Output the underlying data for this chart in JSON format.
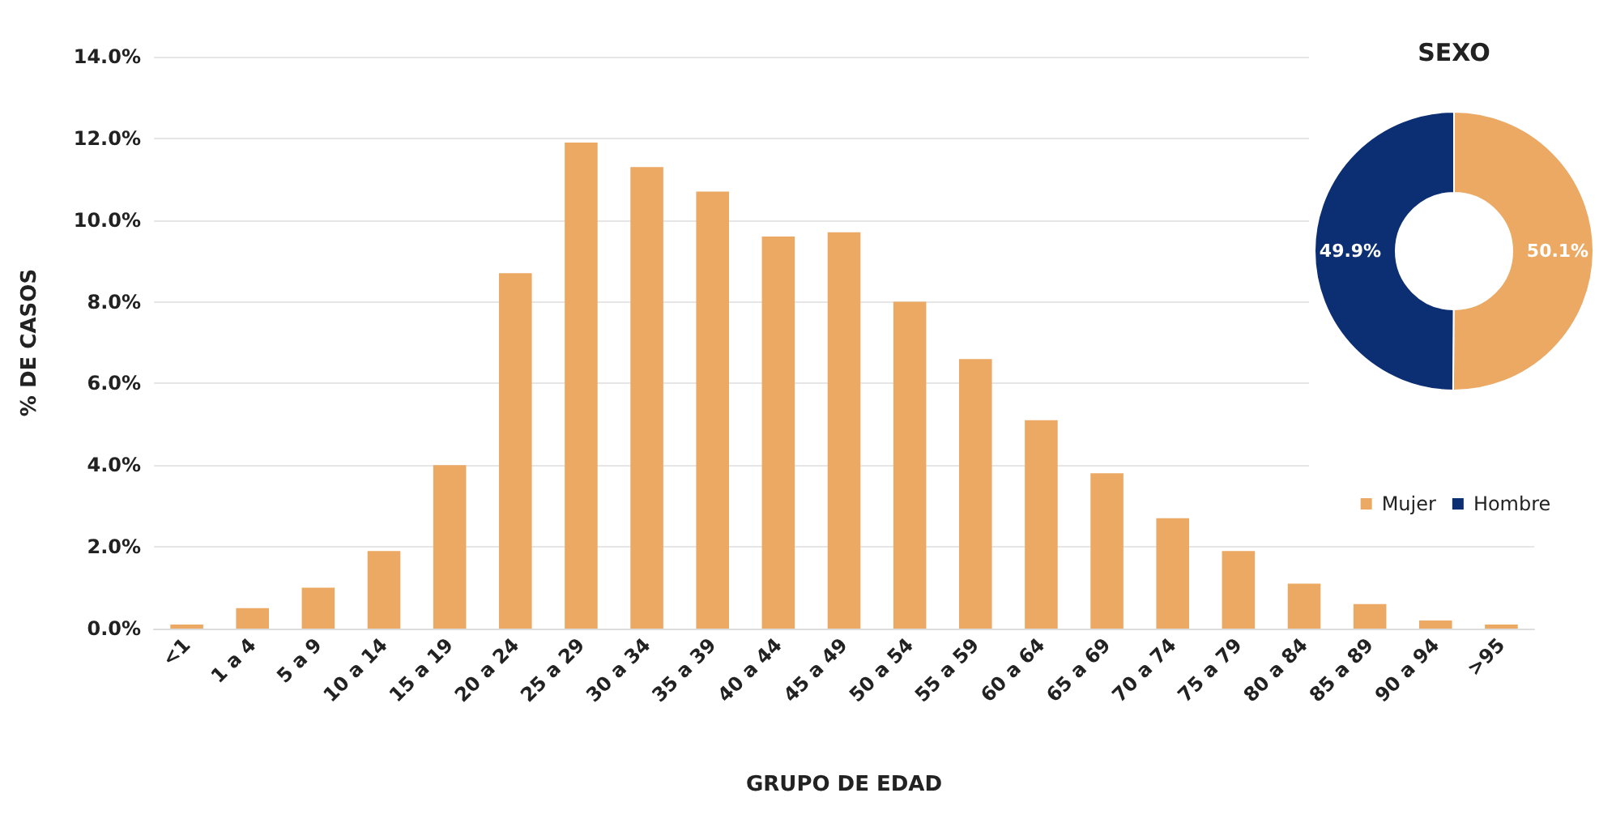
{
  "chart_data": [
    {
      "type": "bar",
      "xlabel": "GRUPO DE EDAD",
      "ylabel": "% DE CASOS",
      "categories": [
        "<1",
        "1 a 4",
        "5 a 9",
        "10 a 14",
        "15 a 19",
        "20 a 24",
        "25 a 29",
        "30 a 34",
        "35 a 39",
        "40 a 44",
        "45 a 49",
        "50 a 54",
        "55 a 59",
        "60 a 64",
        "65 a 69",
        "70 a 74",
        "75 a 79",
        "80 a 84",
        "85 a 89",
        "90 a 94",
        ">95"
      ],
      "values": [
        0.1,
        0.5,
        1.0,
        1.9,
        4.0,
        8.7,
        11.9,
        11.3,
        10.7,
        9.6,
        9.7,
        8.0,
        6.6,
        5.1,
        3.8,
        2.7,
        1.9,
        1.1,
        0.6,
        0.2,
        0.1
      ],
      "color": "#eba963",
      "ylim": [
        0,
        14
      ],
      "yticks": [
        {
          "value": 0,
          "label": "0.0%"
        },
        {
          "value": 2,
          "label": "2.0%"
        },
        {
          "value": 4,
          "label": "4.0%"
        },
        {
          "value": 6,
          "label": "6.0%"
        },
        {
          "value": 8,
          "label": "8.0%"
        },
        {
          "value": 10,
          "label": "10.0%"
        },
        {
          "value": 12,
          "label": "12.0%"
        },
        {
          "value": 14,
          "label": "14.0%"
        }
      ],
      "grid": "y"
    },
    {
      "type": "donut",
      "title": "SEXO",
      "categories": [
        "Mujer",
        "Hombre"
      ],
      "values": [
        50.1,
        49.9
      ],
      "colors": [
        "#eba963",
        "#0c2f73"
      ],
      "value_labels": [
        "50.1%",
        "49.9%"
      ],
      "legend": "bottom"
    }
  ]
}
